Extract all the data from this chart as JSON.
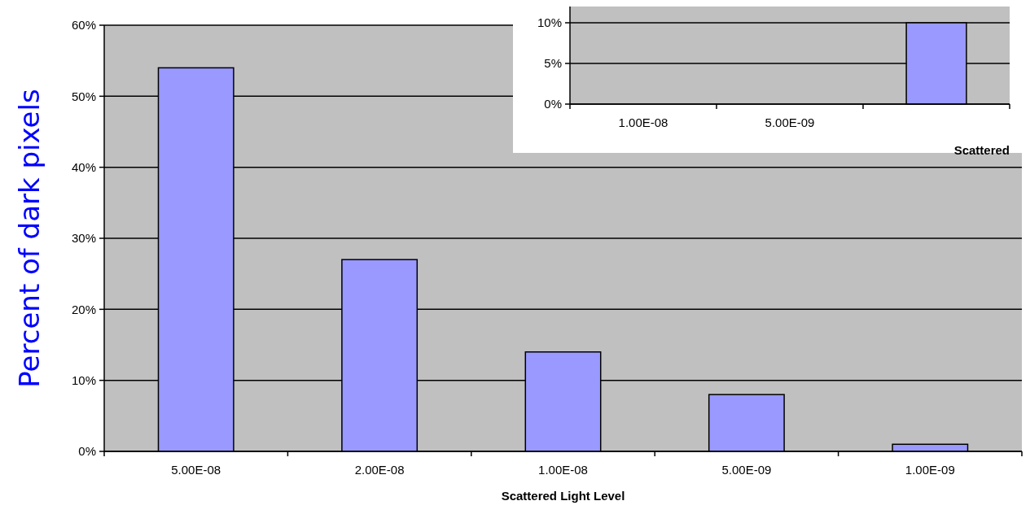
{
  "chart_data": [
    {
      "type": "bar",
      "ylabel": "Percent of dark pixels",
      "xlabel": "Scattered Light  Level",
      "categories": [
        "5.00E-08",
        "2.00E-08",
        "1.00E-08",
        "5.00E-09",
        "1.00E-09"
      ],
      "values": [
        54,
        27,
        14,
        8,
        1
      ],
      "color": "#9999ff",
      "ylim": [
        0,
        60
      ],
      "yticks": [
        {
          "value": 0,
          "label": "0%"
        },
        {
          "value": 10,
          "label": "10%"
        },
        {
          "value": 20,
          "label": "20%"
        },
        {
          "value": 30,
          "label": "30%"
        },
        {
          "value": 40,
          "label": "40%"
        },
        {
          "value": 50,
          "label": "50%"
        },
        {
          "value": 60,
          "label": "60%"
        }
      ],
      "grid": "y"
    },
    {
      "type": "bar",
      "xlabel": "Scattered",
      "categories": [
        "1.00E-08",
        "5.00E-09",
        null
      ],
      "values": [
        null,
        null,
        10
      ],
      "color": "#9999ff",
      "ylim": [
        0,
        12
      ],
      "yticks": [
        {
          "value": 0,
          "label": "0%"
        },
        {
          "value": 5,
          "label": "5%"
        },
        {
          "value": 10,
          "label": "10%"
        }
      ],
      "grid": "y"
    }
  ]
}
